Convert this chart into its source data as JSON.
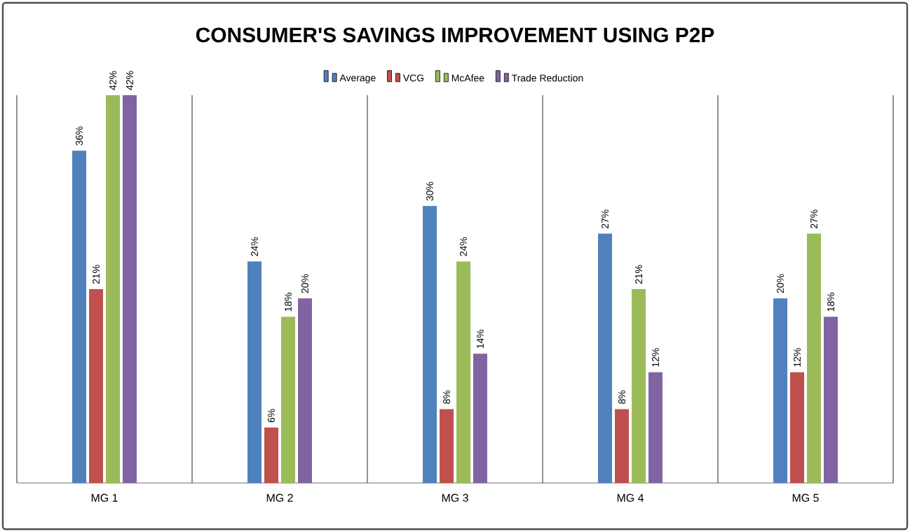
{
  "chart_data": {
    "type": "bar",
    "title": "CONSUMER'S SAVINGS IMPROVEMENT USING P2P",
    "categories": [
      "MG 1",
      "MG 2",
      "MG 3",
      "MG 4",
      "MG 5"
    ],
    "series": [
      {
        "name": "Average",
        "color": "#4f81bd",
        "values": [
          36,
          24,
          30,
          27,
          20
        ],
        "value_labels": [
          "36%",
          "24%",
          "30%",
          "27%",
          "20%"
        ]
      },
      {
        "name": "VCG",
        "color": "#c0504d",
        "values": [
          21,
          6,
          8,
          8,
          12
        ],
        "value_labels": [
          "21%",
          "6%",
          "8%",
          "8%",
          "12%"
        ]
      },
      {
        "name": "McAfee",
        "color": "#9bbb59",
        "values": [
          42,
          18,
          24,
          21,
          27
        ],
        "value_labels": [
          "42%",
          "18%",
          "24%",
          "21%",
          "27%"
        ]
      },
      {
        "name": "Trade Reduction",
        "color": "#8064a2",
        "values": [
          42,
          20,
          14,
          12,
          18
        ],
        "value_labels": [
          "42%",
          "20%",
          "14%",
          "12%",
          "18%"
        ]
      }
    ],
    "legend": "top",
    "grid": "x"
  }
}
